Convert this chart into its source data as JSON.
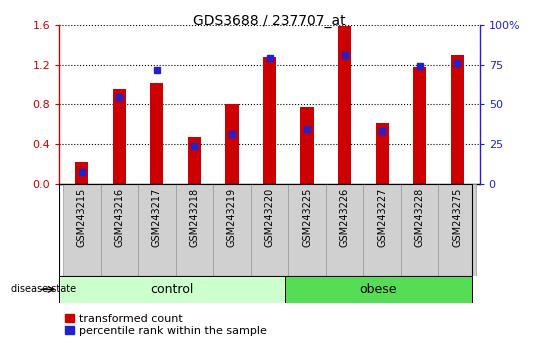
{
  "title": "GDS3688 / 237707_at",
  "samples": [
    "GSM243215",
    "GSM243216",
    "GSM243217",
    "GSM243218",
    "GSM243219",
    "GSM243220",
    "GSM243225",
    "GSM243226",
    "GSM243227",
    "GSM243228",
    "GSM243275"
  ],
  "red_values": [
    0.22,
    0.95,
    1.02,
    0.47,
    0.8,
    1.28,
    0.77,
    1.59,
    0.61,
    1.18,
    1.3
  ],
  "blue_values": [
    0.12,
    0.87,
    1.15,
    0.38,
    0.5,
    1.27,
    0.55,
    1.3,
    0.53,
    1.19,
    1.22
  ],
  "n_control": 6,
  "n_obese": 5,
  "ylim": [
    0,
    1.6
  ],
  "yticks_left": [
    0,
    0.4,
    0.8,
    1.2,
    1.6
  ],
  "yticks_right": [
    0,
    25,
    50,
    75,
    100
  ],
  "bar_color": "#cc0000",
  "blue_color": "#2222cc",
  "control_color": "#ccffcc",
  "obese_color": "#55dd55",
  "bar_width": 0.35,
  "legend_red_label": "transformed count",
  "legend_blue_label": "percentile rank within the sample",
  "disease_state_label": "disease state",
  "control_label": "control",
  "obese_label": "obese",
  "plot_bg": "#d8d8d8",
  "title_fontsize": 10,
  "tick_label_fontsize": 7,
  "axis_label_fontsize": 8,
  "legend_fontsize": 8
}
